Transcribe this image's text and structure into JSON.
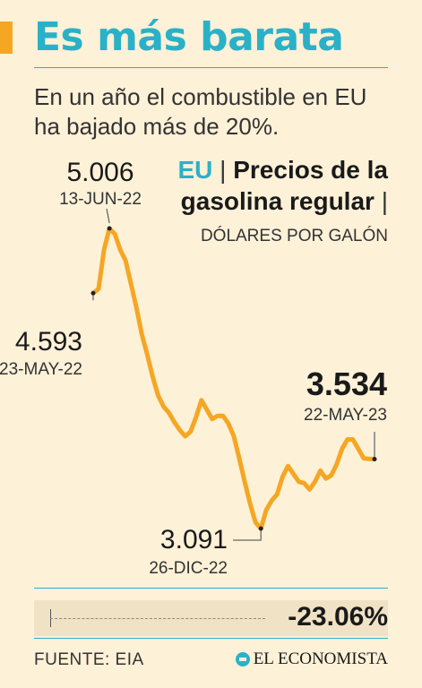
{
  "title": "Es más barata",
  "subtitle": "En un año el combustible en EU ha bajado más de 20%.",
  "chart_header": {
    "country": "EU",
    "separator": "|",
    "title": "Precios de la gasolina regular",
    "units": "DÓLARES POR GALÓN"
  },
  "colors": {
    "accent": "#2bb1c7",
    "line": "#f5a623",
    "background": "#fdf1d8"
  },
  "chart_data": {
    "type": "line",
    "title": "Precios de la gasolina regular",
    "ylabel": "DÓLARES POR GALÓN",
    "xlabel": "",
    "x_range": [
      "2022-05-23",
      "2023-05-22"
    ],
    "ylim": [
      2.9,
      5.1
    ],
    "grid": false,
    "series": [
      {
        "name": "EU",
        "points": [
          [
            "2022-05-23",
            4.593
          ],
          [
            "2022-05-30",
            4.62
          ],
          [
            "2022-06-06",
            4.87
          ],
          [
            "2022-06-13",
            5.006
          ],
          [
            "2022-06-20",
            4.97
          ],
          [
            "2022-06-27",
            4.87
          ],
          [
            "2022-07-04",
            4.8
          ],
          [
            "2022-07-11",
            4.65
          ],
          [
            "2022-07-18",
            4.5
          ],
          [
            "2022-07-25",
            4.33
          ],
          [
            "2022-08-01",
            4.2
          ],
          [
            "2022-08-08",
            4.06
          ],
          [
            "2022-08-15",
            3.94
          ],
          [
            "2022-08-22",
            3.87
          ],
          [
            "2022-08-29",
            3.83
          ],
          [
            "2022-09-05",
            3.77
          ],
          [
            "2022-09-12",
            3.72
          ],
          [
            "2022-09-19",
            3.68
          ],
          [
            "2022-09-26",
            3.71
          ],
          [
            "2022-10-03",
            3.8
          ],
          [
            "2022-10-10",
            3.91
          ],
          [
            "2022-10-17",
            3.85
          ],
          [
            "2022-10-24",
            3.79
          ],
          [
            "2022-10-31",
            3.81
          ],
          [
            "2022-11-07",
            3.81
          ],
          [
            "2022-11-14",
            3.76
          ],
          [
            "2022-11-21",
            3.68
          ],
          [
            "2022-11-28",
            3.54
          ],
          [
            "2022-12-05",
            3.39
          ],
          [
            "2022-12-12",
            3.25
          ],
          [
            "2022-12-19",
            3.13
          ],
          [
            "2022-12-26",
            3.091
          ],
          [
            "2023-01-02",
            3.21
          ],
          [
            "2023-01-09",
            3.27
          ],
          [
            "2023-01-16",
            3.31
          ],
          [
            "2023-01-23",
            3.42
          ],
          [
            "2023-01-30",
            3.49
          ],
          [
            "2023-02-06",
            3.44
          ],
          [
            "2023-02-13",
            3.39
          ],
          [
            "2023-02-20",
            3.38
          ],
          [
            "2023-02-27",
            3.34
          ],
          [
            "2023-03-06",
            3.39
          ],
          [
            "2023-03-13",
            3.46
          ],
          [
            "2023-03-20",
            3.41
          ],
          [
            "2023-03-27",
            3.43
          ],
          [
            "2023-04-03",
            3.5
          ],
          [
            "2023-04-10",
            3.6
          ],
          [
            "2023-04-17",
            3.66
          ],
          [
            "2023-04-24",
            3.66
          ],
          [
            "2023-05-01",
            3.6
          ],
          [
            "2023-05-08",
            3.54
          ],
          [
            "2023-05-15",
            3.535
          ],
          [
            "2023-05-22",
            3.534
          ]
        ]
      }
    ],
    "annotations": [
      {
        "x": "2022-05-23",
        "y": 4.593,
        "value_label": "4.593",
        "date_label": "23-MAY-22"
      },
      {
        "x": "2022-06-13",
        "y": 5.006,
        "value_label": "5.006",
        "date_label": "13-JUN-22"
      },
      {
        "x": "2022-12-26",
        "y": 3.091,
        "value_label": "3.091",
        "date_label": "26-DIC-22"
      },
      {
        "x": "2023-05-22",
        "y": 3.534,
        "value_label": "3.534",
        "date_label": "22-MAY-23"
      }
    ]
  },
  "change": "-23.06%",
  "source": "FUENTE: EIA",
  "logo_text": "EL ECONOMISTA"
}
